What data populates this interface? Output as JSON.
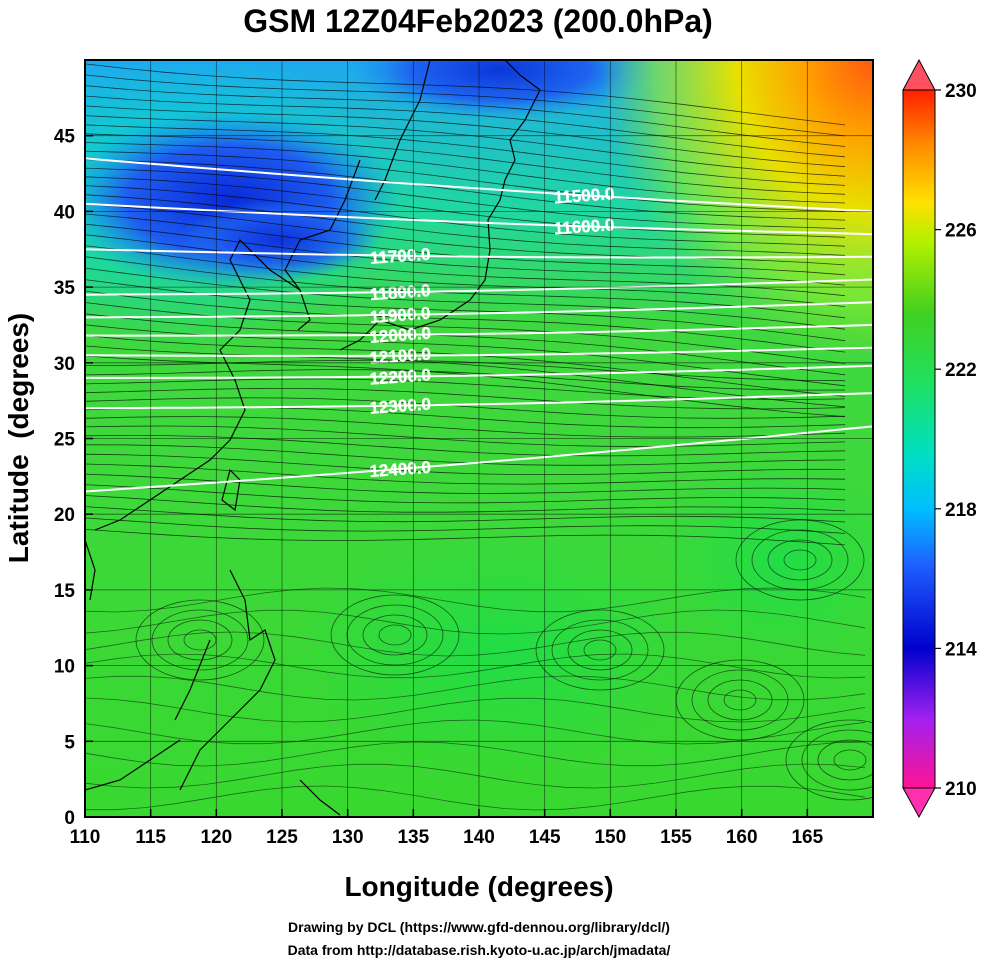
{
  "title": "GSM 12Z04Feb2023 (200.0hPa)",
  "x_axis": {
    "label": "Longitude (degrees)",
    "min": 110,
    "max": 170,
    "ticks": [
      "110",
      "115",
      "120",
      "125",
      "130",
      "135",
      "140",
      "145",
      "150",
      "155",
      "160",
      "165"
    ]
  },
  "y_axis": {
    "label": "Latitude  (degrees)",
    "min": 0,
    "max": 50,
    "ticks": [
      "0",
      "5",
      "10",
      "15",
      "20",
      "25",
      "30",
      "35",
      "40",
      "45"
    ]
  },
  "colorbar": {
    "min": 210,
    "max": 230,
    "labels": [
      "230",
      "226",
      "222",
      "218",
      "214",
      "210"
    ],
    "colors": [
      "#ff1493",
      "#a020f0",
      "#0000cd",
      "#1e60ff",
      "#00bfff",
      "#00e0c0",
      "#20e060",
      "#40d020",
      "#b0f000",
      "#ffe000",
      "#ff8c00",
      "#ff2000"
    ]
  },
  "contours": [
    {
      "label": "11500.0",
      "lat_west": 43.5,
      "lat_east": 40.0
    },
    {
      "label": "11600.0",
      "lat_west": 40.5,
      "lat_east": 38.5
    },
    {
      "label": "11700.0",
      "lat_west": 37.5,
      "lat_east": 37.0
    },
    {
      "label": "11800.0",
      "lat_west": 34.5,
      "lat_east": 35.5
    },
    {
      "label": "11900.0",
      "lat_west": 33.0,
      "lat_east": 34.0
    },
    {
      "label": "12000.0",
      "lat_west": 31.8,
      "lat_east": 32.5
    },
    {
      "label": "12100.0",
      "lat_west": 30.5,
      "lat_east": 31.0
    },
    {
      "label": "12200.0",
      "lat_west": 29.0,
      "lat_east": 29.8
    },
    {
      "label": "12300.0",
      "lat_west": 27.0,
      "lat_east": 28.0
    },
    {
      "label": "12400.0",
      "lat_west": 21.5,
      "lat_east": 25.8
    }
  ],
  "footer": {
    "line1": "Drawing by DCL (https://www.gfd-dennou.org/library/dcl/)",
    "line2": "Data from http://database.rish.kyoto-u.ac.jp/arch/jmadata/"
  }
}
